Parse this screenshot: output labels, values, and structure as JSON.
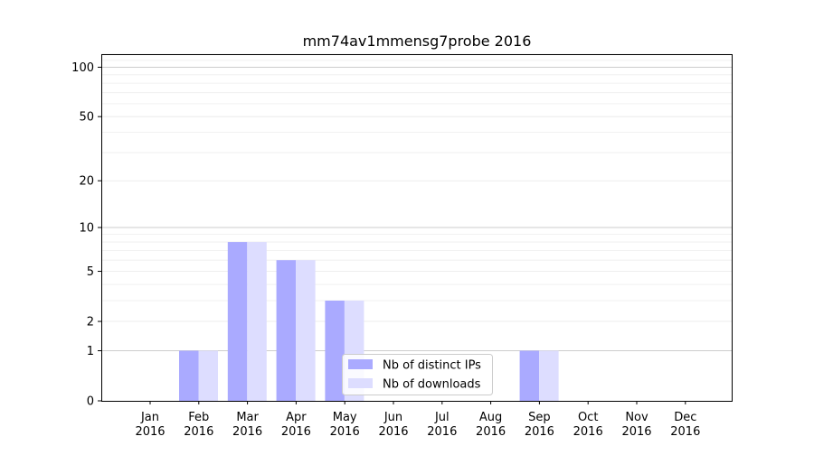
{
  "chart_data": {
    "type": "bar",
    "title": "mm74av1mmensg7probe 2016",
    "xlabel": "",
    "ylabel": "",
    "categories": [
      [
        "Jan",
        "2016"
      ],
      [
        "Feb",
        "2016"
      ],
      [
        "Mar",
        "2016"
      ],
      [
        "Apr",
        "2016"
      ],
      [
        "May",
        "2016"
      ],
      [
        "Jun",
        "2016"
      ],
      [
        "Jul",
        "2016"
      ],
      [
        "Aug",
        "2016"
      ],
      [
        "Sep",
        "2016"
      ],
      [
        "Oct",
        "2016"
      ],
      [
        "Nov",
        "2016"
      ],
      [
        "Dec",
        "2016"
      ]
    ],
    "series": [
      {
        "name": "Nb of distinct IPs",
        "color": "#aaaaff",
        "values": [
          0,
          1,
          8,
          6,
          3,
          0,
          0,
          0,
          1,
          0,
          0,
          0
        ]
      },
      {
        "name": "Nb of downloads",
        "color": "#ddddff",
        "values": [
          0,
          1,
          8,
          6,
          3,
          0,
          0,
          0,
          1,
          0,
          0,
          0
        ]
      }
    ],
    "y_scale": "log(1+y)",
    "ylim": [
      0,
      120
    ],
    "yticks": [
      0,
      1,
      2,
      5,
      10,
      20,
      50,
      100
    ],
    "grid": true,
    "legend_position": "lower-center"
  }
}
